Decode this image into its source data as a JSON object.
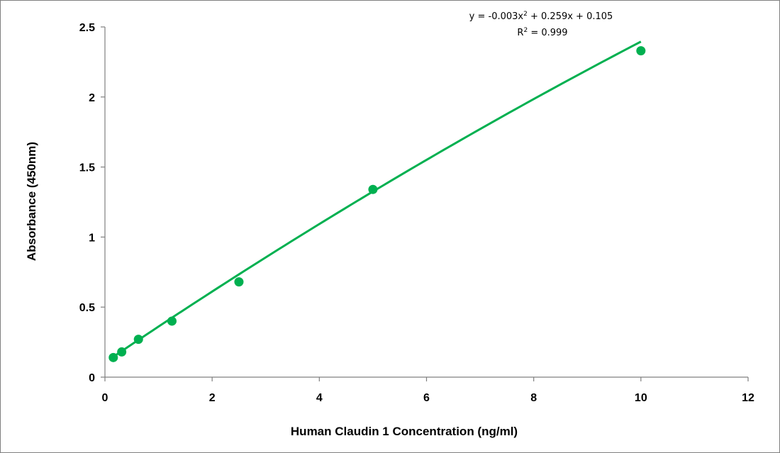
{
  "chart_data": {
    "type": "scatter",
    "title": "",
    "xlabel": "Human Claudin 1 Concentration (ng/ml)",
    "ylabel": "Absorbance (450nm)",
    "xlim": [
      0,
      12
    ],
    "ylim": [
      0,
      2.5
    ],
    "x_ticks": [
      0,
      2,
      4,
      6,
      8,
      10,
      12
    ],
    "x_tick_labels": [
      "0",
      "2",
      "4",
      "6",
      "8",
      "10",
      "12"
    ],
    "y_ticks": [
      0,
      0.5,
      1,
      1.5,
      2,
      2.5
    ],
    "y_tick_labels": [
      "0",
      "0.5",
      "1",
      "1.5",
      "2",
      "2.5"
    ],
    "grid": false,
    "series": [
      {
        "x": [
          0.156,
          0.313,
          0.625,
          1.25,
          2.5,
          5,
          10
        ],
        "y": [
          0.14,
          0.18,
          0.27,
          0.4,
          0.68,
          1.34,
          2.33
        ],
        "color": "#00b050"
      }
    ],
    "trendline": {
      "type": "polynomial",
      "coefficients": [
        -0.003,
        0.259,
        0.105
      ],
      "x_range": [
        0.156,
        10
      ],
      "color": "#00b050"
    },
    "annotations": {
      "equation_prefix": "y = -0.003x",
      "equation_sup": "2",
      "equation_suffix": " + 0.259x + 0.105",
      "r2_prefix": "R",
      "r2_sup": "2",
      "r2_suffix": " = 0.999"
    }
  }
}
